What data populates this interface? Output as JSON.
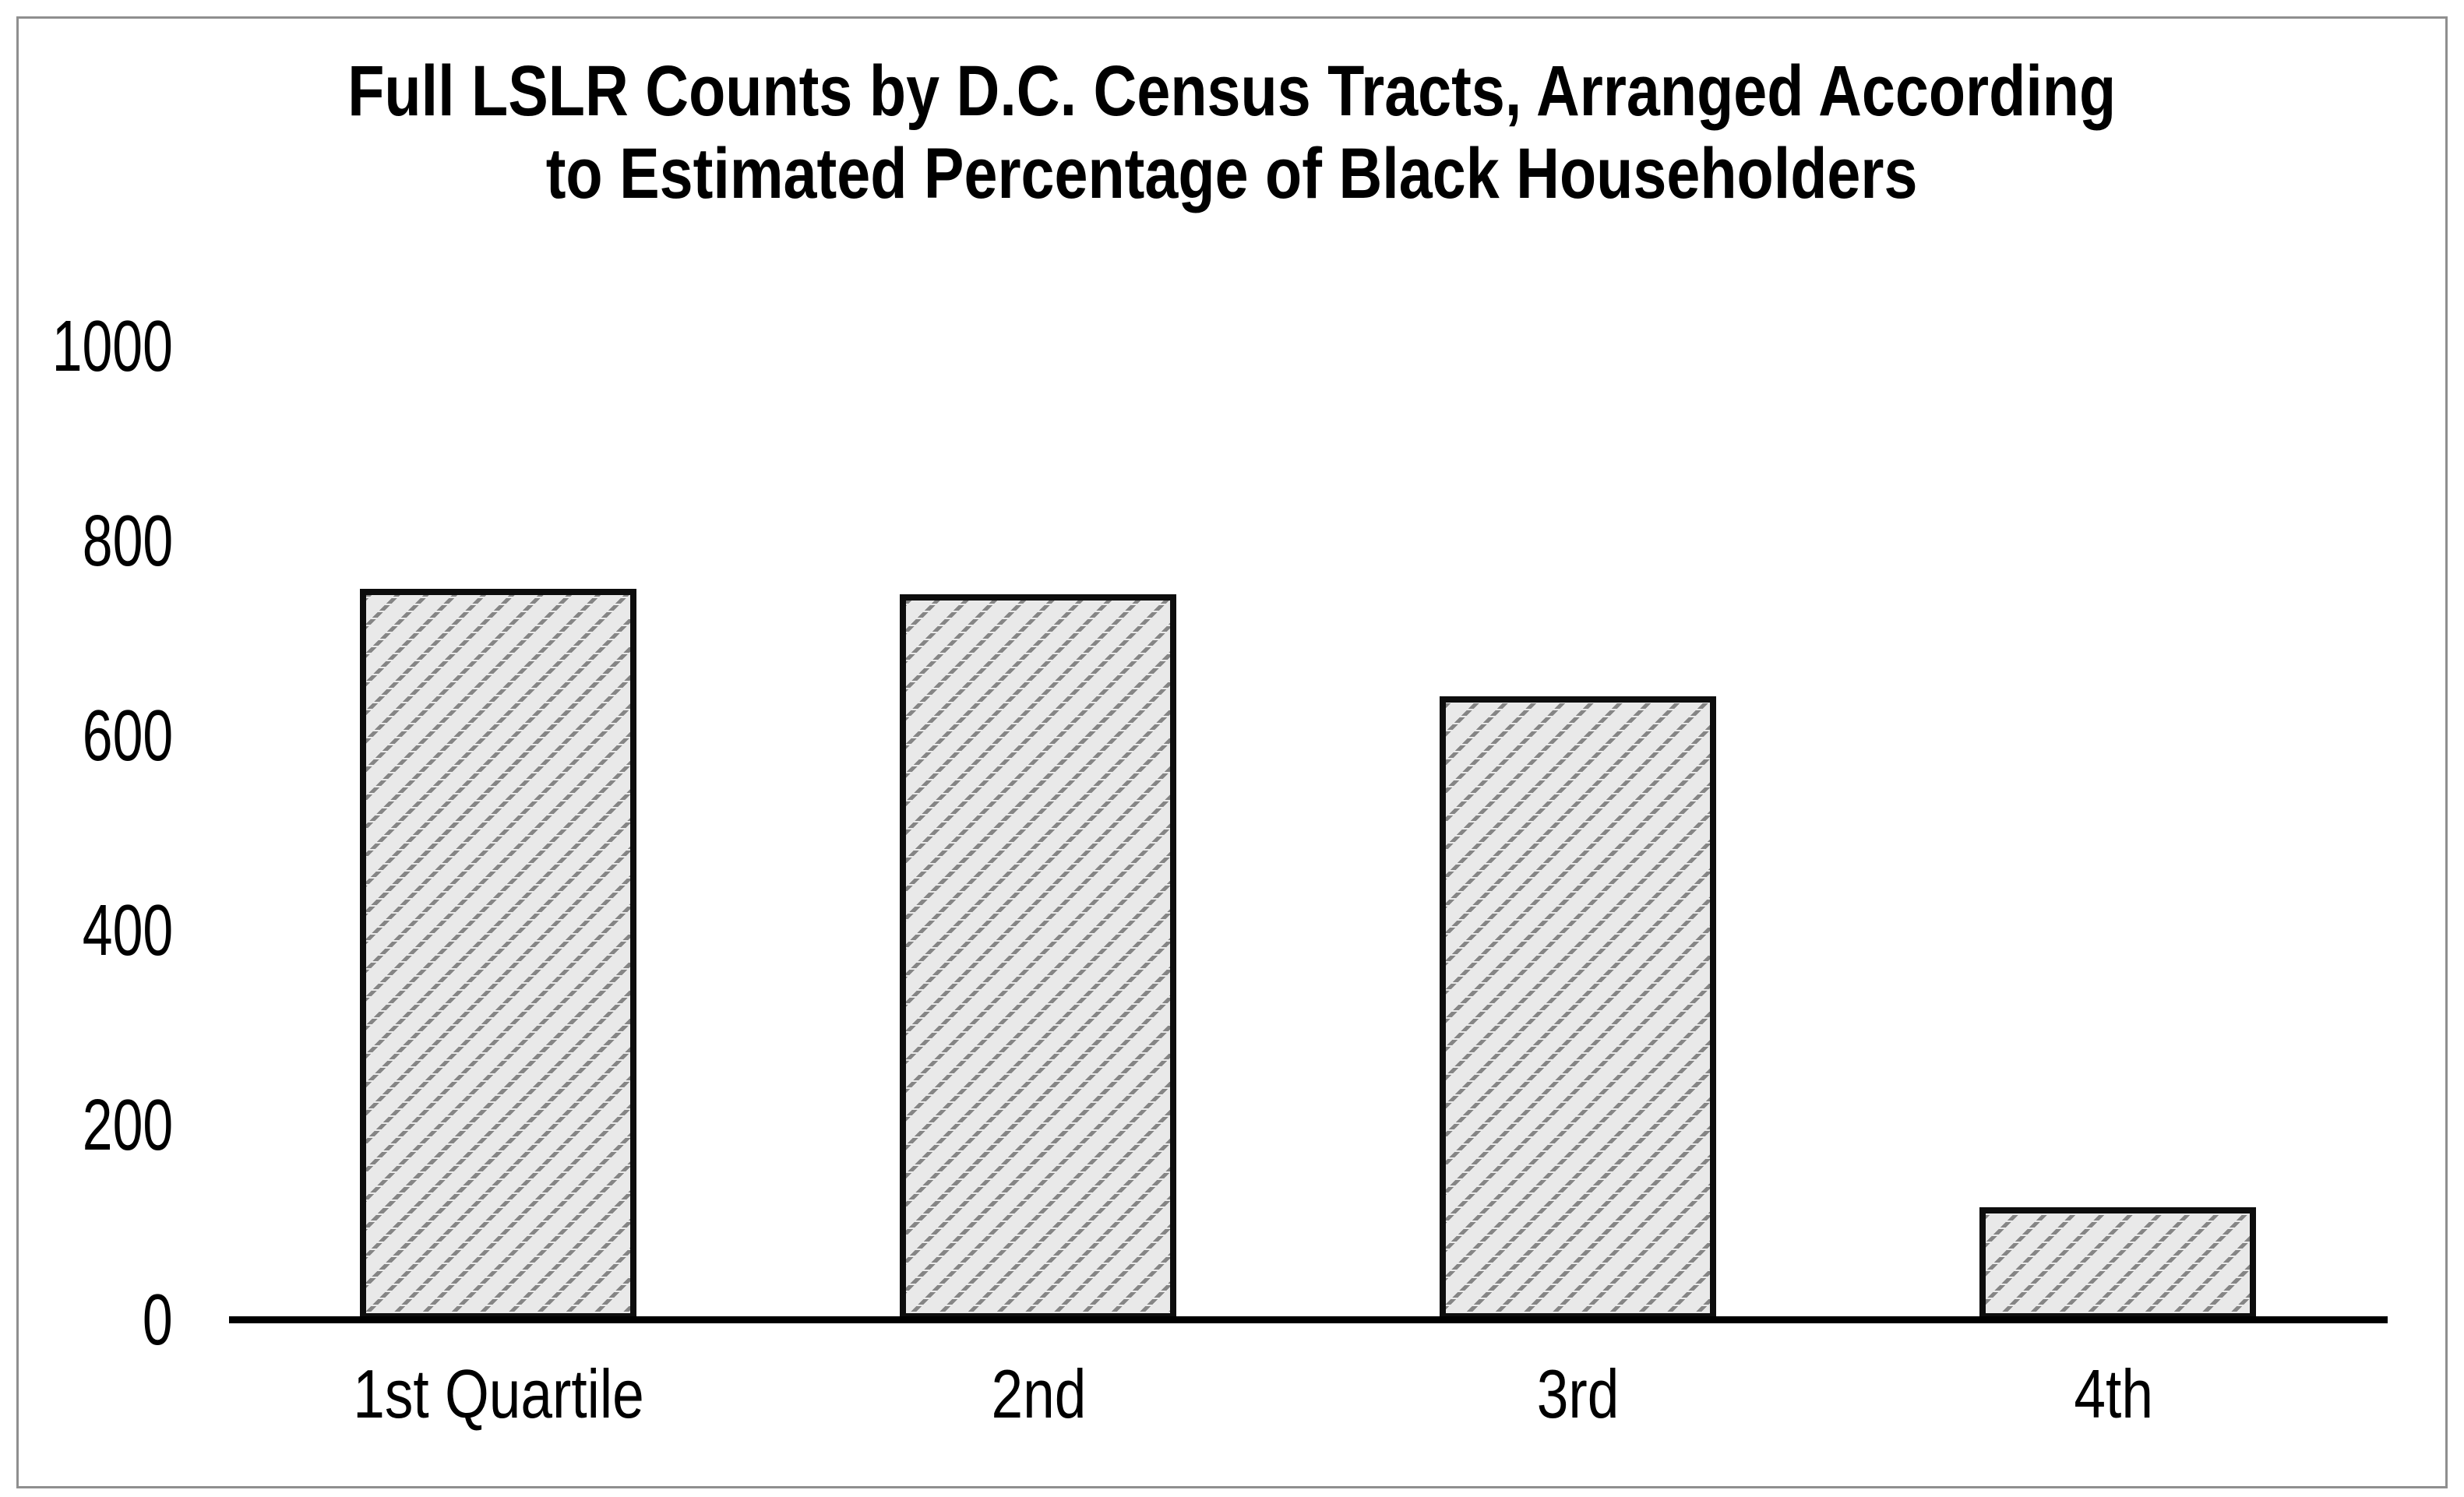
{
  "chart": {
    "title_line1": "Full LSLR Counts by D.C. Census Tracts, Arranged According",
    "title_line2": "to Estimated Percentage of Black Householders"
  },
  "chart_data": {
    "type": "bar",
    "title": "Full LSLR Counts by D.C. Census Tracts, Arranged According to Estimated Percentage of Black Householders",
    "categories": [
      "1st Quartile",
      "2nd",
      "3rd",
      "4th"
    ],
    "values": [
      750,
      745,
      640,
      115
    ],
    "xlabel": "",
    "ylabel": "",
    "ylim": [
      0,
      1000
    ],
    "yticks": [
      1000,
      800,
      600,
      400,
      200,
      0
    ],
    "grid": false,
    "legend": false,
    "colors": {
      "bar_fill": "#e9e9e9",
      "bar_hatch": "#858585",
      "bar_border": "#000000",
      "axis": "#000000",
      "text": "#000000",
      "frame_border": "#8f8f8f",
      "background": "#ffffff"
    },
    "bar_hatch_style": "dotted diagonal lines rising left-to-right"
  }
}
